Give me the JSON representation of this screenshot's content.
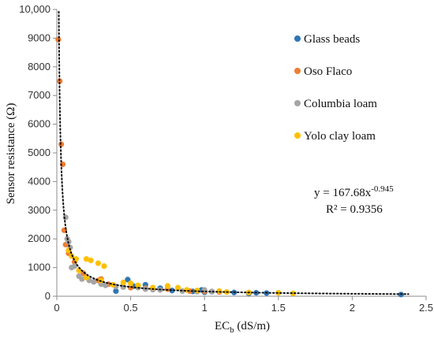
{
  "chart_data": {
    "type": "scatter",
    "xlabel": {
      "main": "EC",
      "sub": "b",
      "rest": " (dS/m)"
    },
    "ylabel": "Sensor resistance (Ω)",
    "xlim": [
      0,
      2.5
    ],
    "ylim": [
      0,
      10000
    ],
    "x_ticks": [
      0,
      0.5,
      1,
      1.5,
      2,
      2.5
    ],
    "x_tick_labels": [
      "0",
      "0.5",
      "1",
      "1.5",
      "2",
      "2.5"
    ],
    "y_ticks": [
      0,
      1000,
      2000,
      3000,
      4000,
      5000,
      6000,
      7000,
      8000,
      9000,
      10000
    ],
    "y_tick_labels": [
      "0",
      "1000",
      "2000",
      "3000",
      "4000",
      "5000",
      "6000",
      "7000",
      "8000",
      "9000",
      "10,000"
    ],
    "grid": false,
    "legend_position": "top-right",
    "series": [
      {
        "name": "Glass beads",
        "color": "#2e75b6",
        "points": [
          [
            0.4,
            180
          ],
          [
            0.48,
            580
          ],
          [
            0.52,
            350
          ],
          [
            0.6,
            400
          ],
          [
            0.7,
            280
          ],
          [
            0.78,
            200
          ],
          [
            0.92,
            170
          ],
          [
            0.98,
            220
          ],
          [
            1.0,
            140
          ],
          [
            1.05,
            160
          ],
          [
            1.2,
            130
          ],
          [
            1.3,
            100
          ],
          [
            1.35,
            120
          ],
          [
            1.42,
            110
          ],
          [
            2.33,
            60
          ]
        ]
      },
      {
        "name": "Oso  Flaco",
        "color": "#ed7d31",
        "points": [
          [
            0.01,
            8950
          ],
          [
            0.02,
            7500
          ],
          [
            0.03,
            5300
          ],
          [
            0.04,
            4600
          ],
          [
            0.05,
            2300
          ],
          [
            0.06,
            1800
          ],
          [
            0.08,
            1500
          ],
          [
            0.12,
            1200
          ],
          [
            0.18,
            800
          ],
          [
            0.28,
            550
          ],
          [
            0.3,
            600
          ],
          [
            0.35,
            420
          ],
          [
            0.5,
            300
          ],
          [
            0.6,
            280
          ],
          [
            0.75,
            250
          ],
          [
            0.9,
            180
          ],
          [
            1.0,
            170
          ],
          [
            1.1,
            150
          ]
        ]
      },
      {
        "name": "Columbia loam",
        "color": "#a5a5a5",
        "points": [
          [
            0.06,
            2750
          ],
          [
            0.07,
            2000
          ],
          [
            0.08,
            1900
          ],
          [
            0.09,
            1700
          ],
          [
            0.1,
            1000
          ],
          [
            0.12,
            1050
          ],
          [
            0.15,
            700
          ],
          [
            0.17,
            600
          ],
          [
            0.22,
            550
          ],
          [
            0.25,
            500
          ],
          [
            0.3,
            420
          ],
          [
            0.33,
            380
          ],
          [
            0.4,
            340
          ],
          [
            0.45,
            320
          ],
          [
            0.55,
            300
          ],
          [
            0.6,
            250
          ],
          [
            0.65,
            230
          ],
          [
            0.7,
            220
          ],
          [
            0.85,
            180
          ],
          [
            0.95,
            160
          ],
          [
            1.0,
            220
          ],
          [
            1.05,
            170
          ]
        ]
      },
      {
        "name": "Yolo clay loam",
        "color": "#ffc000",
        "points": [
          [
            0.08,
            1600
          ],
          [
            0.1,
            1400
          ],
          [
            0.13,
            1300
          ],
          [
            0.2,
            1300
          ],
          [
            0.23,
            1250
          ],
          [
            0.28,
            1150
          ],
          [
            0.32,
            1050
          ],
          [
            0.15,
            900
          ],
          [
            0.2,
            650
          ],
          [
            0.3,
            550
          ],
          [
            0.38,
            400
          ],
          [
            0.45,
            480
          ],
          [
            0.5,
            450
          ],
          [
            0.55,
            380
          ],
          [
            0.65,
            300
          ],
          [
            0.75,
            360
          ],
          [
            0.82,
            300
          ],
          [
            0.88,
            220
          ],
          [
            0.95,
            200
          ],
          [
            1.1,
            180
          ],
          [
            1.15,
            150
          ],
          [
            1.3,
            130
          ],
          [
            1.5,
            120
          ],
          [
            1.6,
            100
          ]
        ]
      }
    ],
    "trendline": {
      "type": "power",
      "coefficient": 167.68,
      "exponent": -0.945,
      "x_start": 0.01,
      "x_end": 2.38,
      "style": "dotted"
    },
    "annotations": {
      "equation_prefix": "y = 167.68x",
      "equation_exponent": "-0.945",
      "r_squared": "R² = 0.9356"
    }
  }
}
